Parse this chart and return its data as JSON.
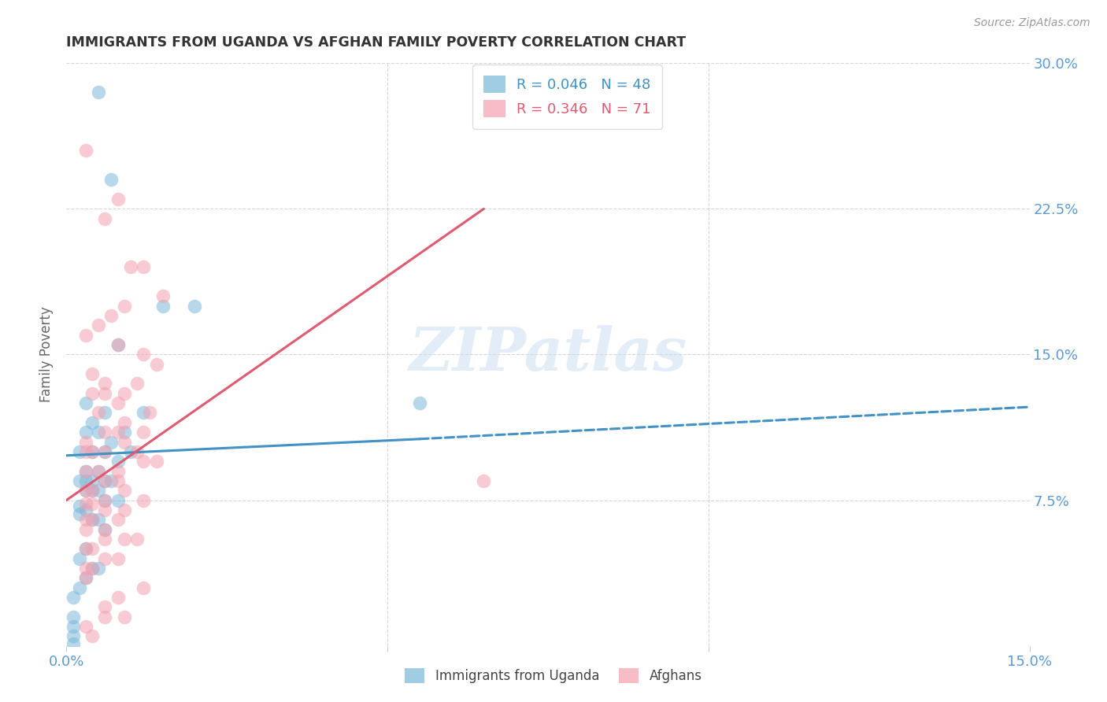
{
  "title": "IMMIGRANTS FROM UGANDA VS AFGHAN FAMILY POVERTY CORRELATION CHART",
  "source": "Source: ZipAtlas.com",
  "ylabel": "Family Poverty",
  "xlim": [
    0.0,
    0.15
  ],
  "ylim": [
    0.0,
    0.3
  ],
  "ytick_labels": [
    "7.5%",
    "15.0%",
    "22.5%",
    "30.0%"
  ],
  "ytick_positions": [
    0.075,
    0.15,
    0.225,
    0.3
  ],
  "grid_color": "#cccccc",
  "background_color": "#ffffff",
  "watermark": "ZIPatlas",
  "legend_r1": "R = 0.046",
  "legend_n1": "N = 48",
  "legend_r2": "R = 0.346",
  "legend_n2": "N = 71",
  "blue_color": "#7ab8d9",
  "pink_color": "#f4a0b0",
  "blue_line_color": "#4292c6",
  "pink_line_color": "#e05a72",
  "axis_label_color": "#5b9bd5",
  "title_color": "#333333",
  "uganda_scatter_x": [
    0.005,
    0.007,
    0.015,
    0.02,
    0.008,
    0.003,
    0.012,
    0.006,
    0.004,
    0.009,
    0.003,
    0.005,
    0.007,
    0.01,
    0.004,
    0.002,
    0.006,
    0.008,
    0.003,
    0.005,
    0.004,
    0.003,
    0.002,
    0.006,
    0.007,
    0.004,
    0.003,
    0.005,
    0.008,
    0.006,
    0.002,
    0.003,
    0.004,
    0.005,
    0.006,
    0.003,
    0.002,
    0.004,
    0.005,
    0.003,
    0.002,
    0.001,
    0.055,
    0.002,
    0.001,
    0.001,
    0.001,
    0.001
  ],
  "uganda_scatter_y": [
    0.285,
    0.24,
    0.175,
    0.175,
    0.155,
    0.125,
    0.12,
    0.12,
    0.115,
    0.11,
    0.11,
    0.11,
    0.105,
    0.1,
    0.1,
    0.1,
    0.1,
    0.095,
    0.09,
    0.09,
    0.085,
    0.085,
    0.085,
    0.085,
    0.085,
    0.08,
    0.08,
    0.08,
    0.075,
    0.075,
    0.072,
    0.07,
    0.065,
    0.065,
    0.06,
    0.05,
    0.045,
    0.04,
    0.04,
    0.035,
    0.03,
    0.025,
    0.125,
    0.068,
    0.015,
    0.01,
    0.005,
    0.001
  ],
  "afghan_scatter_x": [
    0.003,
    0.008,
    0.012,
    0.006,
    0.01,
    0.015,
    0.009,
    0.007,
    0.005,
    0.003,
    0.008,
    0.012,
    0.014,
    0.006,
    0.011,
    0.009,
    0.006,
    0.004,
    0.008,
    0.013,
    0.005,
    0.009,
    0.012,
    0.008,
    0.006,
    0.003,
    0.009,
    0.006,
    0.003,
    0.004,
    0.011,
    0.014,
    0.012,
    0.008,
    0.005,
    0.003,
    0.008,
    0.006,
    0.003,
    0.004,
    0.009,
    0.012,
    0.006,
    0.003,
    0.004,
    0.009,
    0.006,
    0.003,
    0.004,
    0.008,
    0.006,
    0.003,
    0.011,
    0.009,
    0.006,
    0.004,
    0.003,
    0.008,
    0.006,
    0.003,
    0.004,
    0.003,
    0.012,
    0.008,
    0.006,
    0.009,
    0.006,
    0.003,
    0.004,
    0.065,
    0.004
  ],
  "afghan_scatter_y": [
    0.255,
    0.23,
    0.195,
    0.22,
    0.195,
    0.18,
    0.175,
    0.17,
    0.165,
    0.16,
    0.155,
    0.15,
    0.145,
    0.135,
    0.135,
    0.13,
    0.13,
    0.13,
    0.125,
    0.12,
    0.12,
    0.115,
    0.11,
    0.11,
    0.11,
    0.105,
    0.105,
    0.1,
    0.1,
    0.1,
    0.1,
    0.095,
    0.095,
    0.09,
    0.09,
    0.09,
    0.085,
    0.085,
    0.08,
    0.08,
    0.08,
    0.075,
    0.075,
    0.073,
    0.073,
    0.07,
    0.07,
    0.065,
    0.065,
    0.065,
    0.06,
    0.06,
    0.055,
    0.055,
    0.055,
    0.05,
    0.05,
    0.045,
    0.045,
    0.04,
    0.04,
    0.035,
    0.03,
    0.025,
    0.02,
    0.015,
    0.015,
    0.01,
    0.005,
    0.085,
    0.14
  ],
  "uganda_line_x0": 0.0,
  "uganda_line_x1": 0.055,
  "uganda_line_x2": 0.15,
  "uganda_line_y0": 0.098,
  "uganda_line_y1": 0.1065,
  "uganda_line_y2": 0.123,
  "afghan_line_x0": 0.0,
  "afghan_line_x1": 0.065,
  "afghan_line_y0": 0.075,
  "afghan_line_y1": 0.225
}
